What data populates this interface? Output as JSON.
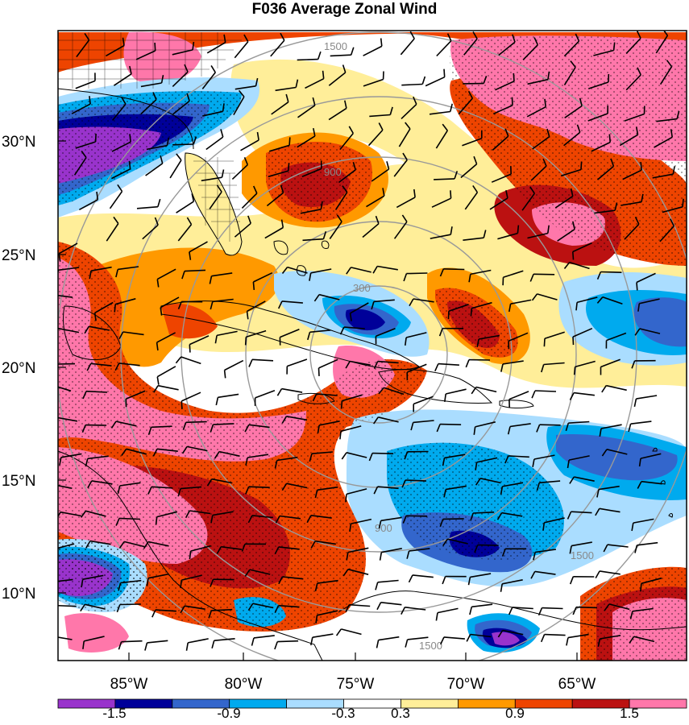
{
  "title": "F036 Average Zonal Wind",
  "lat_labels": [
    "30°N",
    "25°N",
    "20°N",
    "15°N",
    "10°N"
  ],
  "lon_labels": [
    "85°W",
    "80°W",
    "75°W",
    "70°W",
    "65°W"
  ],
  "range_ring_labels": [
    "300",
    "900",
    "1500"
  ],
  "colorbar": {
    "labels": [
      "-1.5",
      "-0.9",
      "-0.3",
      "0.3",
      "0.9",
      "1.5"
    ],
    "colors": [
      "#9933cc",
      "#000099",
      "#3366cc",
      "#00aaee",
      "#aaddff",
      "#ffffff",
      "#ffee99",
      "#ff9900",
      "#ee4400",
      "#bb1111",
      "#ff77aa"
    ]
  },
  "palette": {
    "land_outline": "#000000",
    "ring": "#999999",
    "barb": "#000000"
  }
}
